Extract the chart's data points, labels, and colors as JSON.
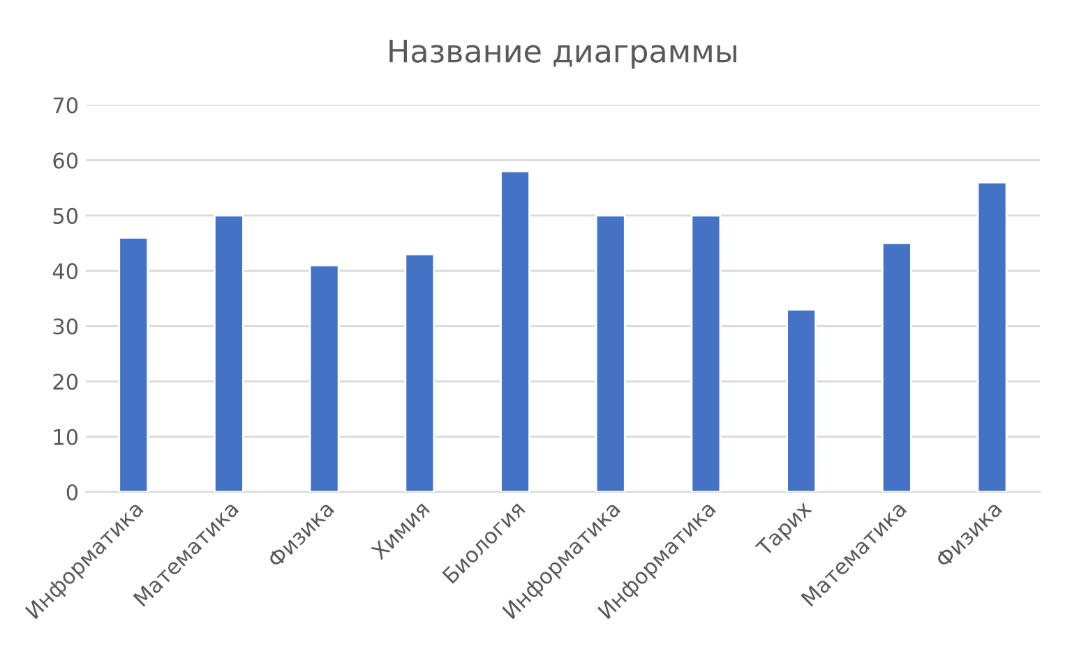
{
  "chart_data": {
    "type": "bar",
    "title": "Название диаграммы",
    "categories": [
      "Информатика",
      "Математика",
      "Физика",
      "Химия",
      "Биология",
      "Информатика",
      "Информатика",
      "Тарих",
      "Математика",
      "Физика"
    ],
    "values": [
      46,
      50,
      41,
      43,
      58,
      50,
      50,
      33,
      45,
      56
    ],
    "color": "#4472c4",
    "ylim": [
      0,
      70
    ],
    "yticks": [
      0,
      10,
      20,
      30,
      40,
      50,
      60,
      70
    ],
    "grid": "y"
  }
}
